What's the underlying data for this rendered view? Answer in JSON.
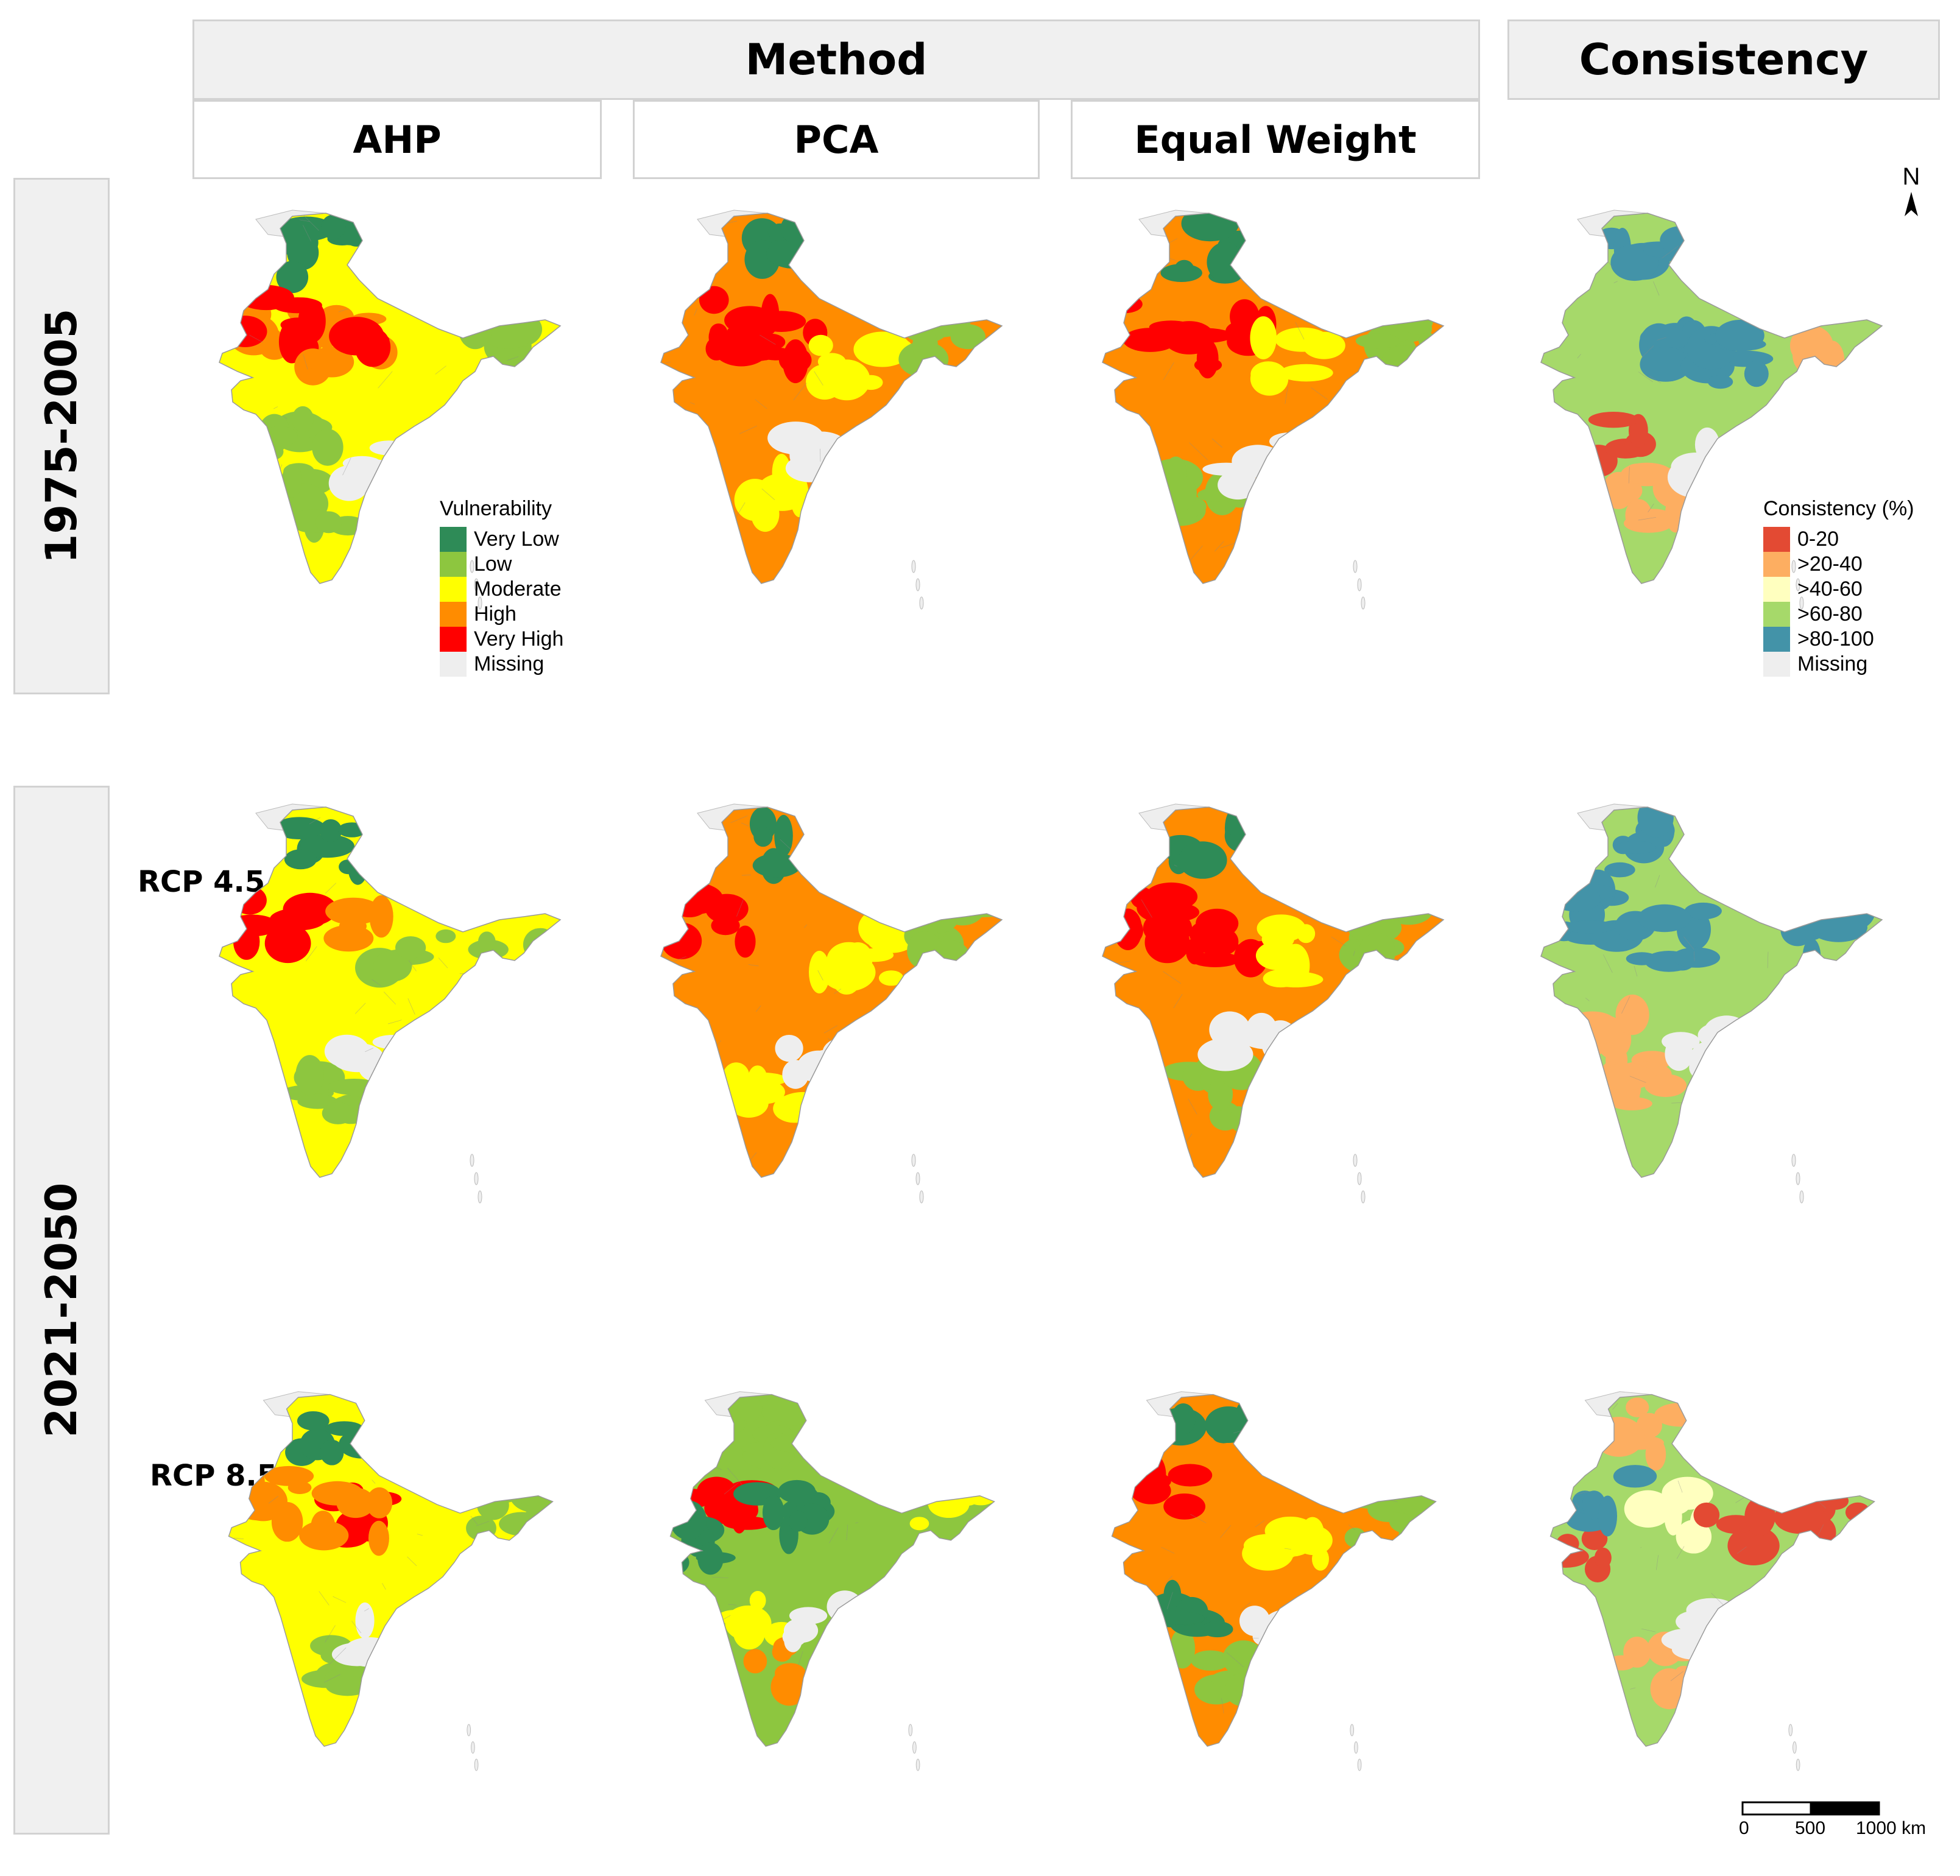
{
  "header": {
    "method": "Method",
    "consistency": "Consistency",
    "methods": [
      "AHP",
      "PCA",
      "Equal Weight"
    ]
  },
  "rows": {
    "baseline": "1975-2005",
    "future": "2021-2050",
    "rcp45": "RCP 4.5",
    "rcp85": "RCP 8.5"
  },
  "vulnerability_legend": {
    "title": "Vulnerability",
    "items": [
      {
        "label": "Very Low",
        "color": "#2e8b57"
      },
      {
        "label": "Low",
        "color": "#8dc63f"
      },
      {
        "label": "Moderate",
        "color": "#ffff00"
      },
      {
        "label": "High",
        "color": "#ff8c00"
      },
      {
        "label": "Very High",
        "color": "#ff0000"
      },
      {
        "label": "Missing",
        "color": "#eeeeee"
      }
    ]
  },
  "consistency_legend": {
    "title": "Consistency (%)",
    "items": [
      {
        "label": "0-20",
        "color": "#e34a33"
      },
      {
        "label": ">20-40",
        "color": "#fdae61"
      },
      {
        "label": ">40-60",
        "color": "#ffffbf"
      },
      {
        "label": ">60-80",
        "color": "#a6d96a"
      },
      {
        "label": ">80-100",
        "color": "#4393a8"
      },
      {
        "label": "Missing",
        "color": "#eeeeee"
      }
    ]
  },
  "north_arrow": "N",
  "scale_bar": {
    "labels": [
      "0",
      "500",
      "1000 km"
    ]
  },
  "maps": [
    {
      "name": "map-ahp-1975-2005",
      "kind": "vuln",
      "base": "Moderate",
      "blobs": [
        {
          "cls": "Very Low",
          "pos": "north"
        },
        {
          "cls": "High",
          "pos": "northwest"
        },
        {
          "cls": "Very High",
          "pos": "northwest"
        },
        {
          "cls": "High",
          "pos": "center"
        },
        {
          "cls": "Very High",
          "pos": "center"
        },
        {
          "cls": "Low",
          "pos": "northeast"
        },
        {
          "cls": "Low",
          "pos": "southwest"
        },
        {
          "cls": "Low",
          "pos": "south"
        },
        {
          "cls": "Missing",
          "pos": "southeast"
        }
      ]
    },
    {
      "name": "map-pca-1975-2005",
      "kind": "vuln",
      "base": "High",
      "blobs": [
        {
          "cls": "Very Low",
          "pos": "north"
        },
        {
          "cls": "Very High",
          "pos": "northwest"
        },
        {
          "cls": "Very High",
          "pos": "center"
        },
        {
          "cls": "Moderate",
          "pos": "east"
        },
        {
          "cls": "Moderate",
          "pos": "south"
        },
        {
          "cls": "Low",
          "pos": "northeast"
        },
        {
          "cls": "Missing",
          "pos": "southeast"
        }
      ]
    },
    {
      "name": "map-ew-1975-2005",
      "kind": "vuln",
      "base": "High",
      "blobs": [
        {
          "cls": "Very Low",
          "pos": "north"
        },
        {
          "cls": "Very High",
          "pos": "northwest"
        },
        {
          "cls": "Very High",
          "pos": "center"
        },
        {
          "cls": "Moderate",
          "pos": "east"
        },
        {
          "cls": "Low",
          "pos": "south"
        },
        {
          "cls": "Low",
          "pos": "northeast"
        },
        {
          "cls": "Missing",
          "pos": "southeast"
        }
      ]
    },
    {
      "name": "map-consistency-1975-2005",
      "kind": "cons",
      "base": ">60-80",
      "blobs": [
        {
          "cls": ">80-100",
          "pos": "north"
        },
        {
          "cls": ">80-100",
          "pos": "center"
        },
        {
          "cls": ">80-100",
          "pos": "east"
        },
        {
          "cls": "0-20",
          "pos": "southwest"
        },
        {
          "cls": ">20-40",
          "pos": "south"
        },
        {
          "cls": ">20-40",
          "pos": "northeast"
        },
        {
          "cls": "Missing",
          "pos": "southeast"
        }
      ]
    },
    {
      "name": "map-ahp-rcp45",
      "kind": "vuln",
      "base": "Moderate",
      "blobs": [
        {
          "cls": "Very Low",
          "pos": "north"
        },
        {
          "cls": "Very High",
          "pos": "northwest"
        },
        {
          "cls": "High",
          "pos": "center"
        },
        {
          "cls": "Low",
          "pos": "east"
        },
        {
          "cls": "Low",
          "pos": "south"
        },
        {
          "cls": "Low",
          "pos": "northeast"
        },
        {
          "cls": "Missing",
          "pos": "southeast"
        }
      ]
    },
    {
      "name": "map-pca-rcp45",
      "kind": "vuln",
      "base": "High",
      "blobs": [
        {
          "cls": "Very Low",
          "pos": "north"
        },
        {
          "cls": "Very High",
          "pos": "northwest"
        },
        {
          "cls": "Moderate",
          "pos": "east"
        },
        {
          "cls": "Moderate",
          "pos": "south"
        },
        {
          "cls": "Low",
          "pos": "northeast"
        },
        {
          "cls": "Missing",
          "pos": "southeast"
        }
      ]
    },
    {
      "name": "map-ew-rcp45",
      "kind": "vuln",
      "base": "High",
      "blobs": [
        {
          "cls": "Very Low",
          "pos": "north"
        },
        {
          "cls": "Very High",
          "pos": "northwest"
        },
        {
          "cls": "Very High",
          "pos": "center"
        },
        {
          "cls": "Moderate",
          "pos": "east"
        },
        {
          "cls": "Low",
          "pos": "south"
        },
        {
          "cls": "Low",
          "pos": "northeast"
        },
        {
          "cls": "Missing",
          "pos": "southeast"
        }
      ]
    },
    {
      "name": "map-consistency-rcp45",
      "kind": "cons",
      "base": ">60-80",
      "blobs": [
        {
          "cls": ">80-100",
          "pos": "north"
        },
        {
          "cls": ">80-100",
          "pos": "northwest"
        },
        {
          "cls": ">80-100",
          "pos": "center"
        },
        {
          "cls": ">20-40",
          "pos": "southwest"
        },
        {
          "cls": ">20-40",
          "pos": "south"
        },
        {
          "cls": ">80-100",
          "pos": "northeast"
        },
        {
          "cls": "Missing",
          "pos": "southeast"
        }
      ]
    },
    {
      "name": "map-ahp-rcp85",
      "kind": "vuln",
      "base": "Moderate",
      "blobs": [
        {
          "cls": "Very Low",
          "pos": "north"
        },
        {
          "cls": "High",
          "pos": "northwest"
        },
        {
          "cls": "Very High",
          "pos": "center"
        },
        {
          "cls": "High",
          "pos": "center"
        },
        {
          "cls": "Low",
          "pos": "south"
        },
        {
          "cls": "Low",
          "pos": "northeast"
        },
        {
          "cls": "Missing",
          "pos": "southeast"
        }
      ]
    },
    {
      "name": "map-pca-rcp85",
      "kind": "vuln",
      "base": "Low",
      "blobs": [
        {
          "cls": "Low",
          "pos": "north"
        },
        {
          "cls": "Very High",
          "pos": "northwest"
        },
        {
          "cls": "Very Low",
          "pos": "west"
        },
        {
          "cls": "Very Low",
          "pos": "center"
        },
        {
          "cls": "Moderate",
          "pos": "southwest"
        },
        {
          "cls": "High",
          "pos": "south"
        },
        {
          "cls": "Moderate",
          "pos": "northeast"
        },
        {
          "cls": "Missing",
          "pos": "southeast"
        }
      ]
    },
    {
      "name": "map-ew-rcp85",
      "kind": "vuln",
      "base": "High",
      "blobs": [
        {
          "cls": "Very Low",
          "pos": "north"
        },
        {
          "cls": "Very High",
          "pos": "northwest"
        },
        {
          "cls": "Moderate",
          "pos": "east"
        },
        {
          "cls": "Low",
          "pos": "south"
        },
        {
          "cls": "Very Low",
          "pos": "southwest"
        },
        {
          "cls": "Low",
          "pos": "northeast"
        },
        {
          "cls": "Missing",
          "pos": "southeast"
        }
      ]
    },
    {
      "name": "map-consistency-rcp85",
      "kind": "cons",
      "base": ">60-80",
      "blobs": [
        {
          "cls": ">20-40",
          "pos": "north"
        },
        {
          "cls": "0-20",
          "pos": "west"
        },
        {
          "cls": ">40-60",
          "pos": "center"
        },
        {
          "cls": "0-20",
          "pos": "east"
        },
        {
          "cls": ">80-100",
          "pos": "northwest"
        },
        {
          "cls": ">20-40",
          "pos": "south"
        },
        {
          "cls": "0-20",
          "pos": "northeast"
        },
        {
          "cls": "Missing",
          "pos": "southeast"
        }
      ]
    }
  ]
}
